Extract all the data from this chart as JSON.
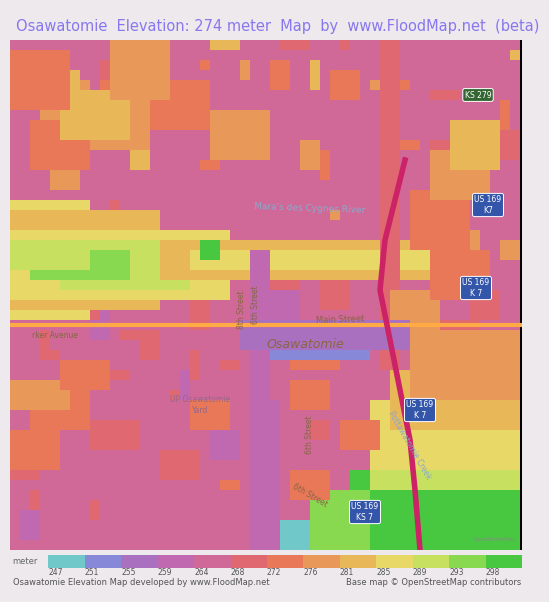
{
  "title": "Osawatomie  Elevation: 274 meter  Map  by  www.FloodMap.net  (beta)",
  "title_color": "#8877ee",
  "title_fontsize": 10.5,
  "background_color": "#ede9ed",
  "map_bg_color": "#cc99cc",
  "colorbar_labels": [
    "247",
    "251",
    "255",
    "259",
    "264",
    "268",
    "272",
    "276",
    "281",
    "285",
    "289",
    "293",
    "298"
  ],
  "colorbar_colors": [
    "#70c8c8",
    "#8888d8",
    "#aa70c0",
    "#c068b0",
    "#d06898",
    "#e06870",
    "#e87858",
    "#e89858",
    "#e8b858",
    "#e8d868",
    "#c8e060",
    "#88d850",
    "#48c840"
  ],
  "footer_left": "Osawatomie Elevation Map developed by www.FloodMap.net",
  "footer_right": "Base map © OpenStreetMap contributors",
  "footer_fontsize": 6.0,
  "meter_label": "meter",
  "fig_width": 5.12,
  "fig_height": 5.82,
  "map_text_color": "#996688",
  "street_color": "#886644",
  "river_color": "#88aacc",
  "highway_color": "#cc2266",
  "road_color": "#ffaa44"
}
